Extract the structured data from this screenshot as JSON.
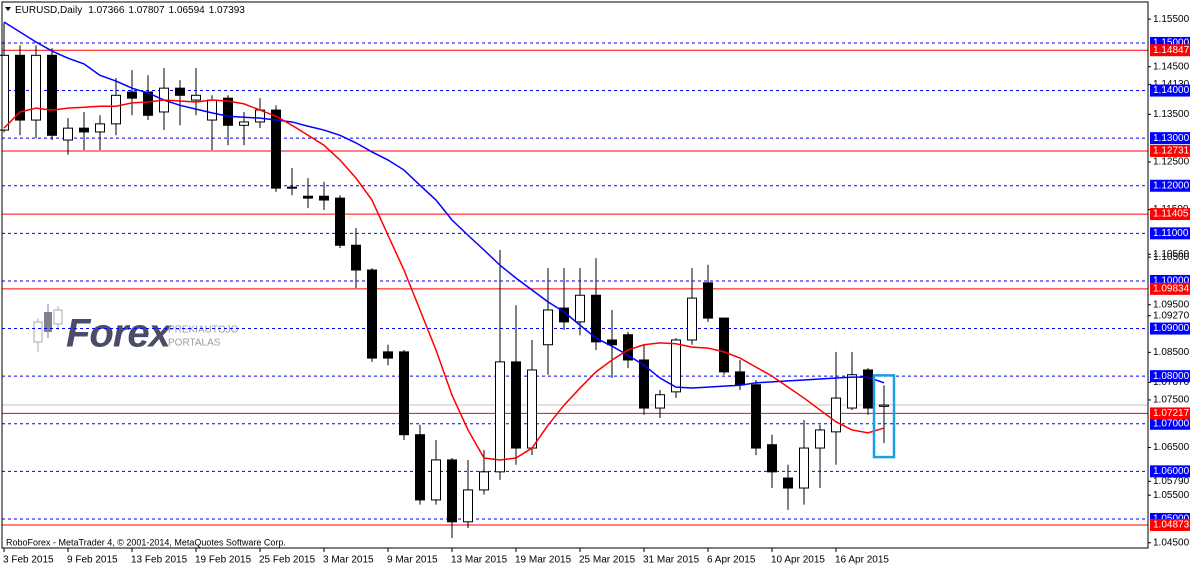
{
  "chart_data": {
    "type": "candlestick",
    "symbol": "EURUSD,Daily",
    "footer": "RoboForex - MetaTrader 4, © 2001-2014, MetaQuotes Software Corp.",
    "watermark": {
      "brand": "Forex",
      "line1": "PREKIAUTOJO",
      "line2": "PORTALAS"
    },
    "categories": [
      "3 Feb 2015",
      null,
      null,
      null,
      "9 Feb 2015",
      null,
      null,
      null,
      "13 Feb 2015",
      null,
      null,
      null,
      "19 Feb 2015",
      null,
      null,
      null,
      "25 Feb 2015",
      null,
      null,
      null,
      "3 Mar 2015",
      null,
      null,
      null,
      "9 Mar 2015",
      null,
      null,
      null,
      "13 Mar 2015",
      null,
      null,
      null,
      "19 Mar 2015",
      null,
      null,
      null,
      "25 Mar 2015",
      null,
      null,
      null,
      "31 Mar 2015",
      null,
      null,
      null,
      "6 Apr 2015",
      null,
      null,
      null,
      "10 Apr 2015",
      null,
      null,
      null,
      "16 Apr 2015",
      null,
      null,
      null
    ],
    "open": [
      1.1317,
      1.1474,
      1.1338,
      1.1474,
      1.1296,
      1.1321,
      1.1313,
      1.133,
      1.1397,
      1.1397,
      1.1355,
      1.1405,
      1.138,
      1.1338,
      1.1384,
      1.1327,
      1.1334,
      1.1359,
      1.1195,
      1.1178,
      1.1178,
      1.1174,
      1.1075,
      1.1023,
      1.0851,
      1.0851,
      1.0677,
      1.054,
      1.0624,
      1.0494,
      1.0561,
      1.0599,
      1.083,
      1.0649,
      1.0866,
      1.0943,
      1.0914,
      1.097,
      1.0876,
      1.0887,
      1.0834,
      1.0733,
      1.0767,
      1.0876,
      1.0996,
      1.0922,
      1.0809,
      1.0782,
      1.0656,
      1.0586,
      1.0565,
      1.0649,
      1.0683,
      1.0733,
      1.0813,
      1.07366
    ],
    "high": [
      1.1543,
      1.1495,
      1.1495,
      1.1489,
      1.1342,
      1.1355,
      1.1348,
      1.1426,
      1.1443,
      1.1432,
      1.1447,
      1.1422,
      1.1447,
      1.139,
      1.139,
      1.1355,
      1.1384,
      1.1369,
      1.1237,
      1.1216,
      1.1208,
      1.118,
      1.1111,
      1.1027,
      1.0866,
      1.0855,
      1.0698,
      1.0666,
      1.0628,
      1.0624,
      1.0645,
      1.1065,
      1.0949,
      1.0876,
      1.1027,
      1.1027,
      1.1027,
      1.1048,
      1.0939,
      1.0893,
      1.0866,
      1.0771,
      1.088,
      1.1027,
      1.1034,
      1.0922,
      1.0834,
      1.0792,
      1.0677,
      1.0614,
      1.0708,
      1.0698,
      1.0851,
      1.0851,
      1.0817,
      1.07807
    ],
    "low": [
      1.1312,
      1.1306,
      1.13,
      1.1296,
      1.1265,
      1.1275,
      1.1275,
      1.1306,
      1.1348,
      1.1338,
      1.1317,
      1.1327,
      1.1348,
      1.1275,
      1.1285,
      1.1285,
      1.1321,
      1.1187,
      1.118,
      1.1153,
      1.1149,
      1.1069,
      1.0985,
      1.083,
      1.0823,
      1.0666,
      1.053,
      1.053,
      1.046,
      1.0481,
      1.0551,
      1.0582,
      1.0614,
      1.0634,
      1.0803,
      1.0897,
      1.0886,
      1.0855,
      1.0796,
      1.0817,
      1.0719,
      1.0712,
      1.0754,
      1.0866,
      1.0914,
      1.0803,
      1.0771,
      1.0634,
      1.0565,
      1.0519,
      1.053,
      1.0565,
      1.0614,
      1.0729,
      1.0719,
      1.06594
    ],
    "close": [
      1.1474,
      1.1338,
      1.1474,
      1.1306,
      1.1321,
      1.1313,
      1.133,
      1.139,
      1.1384,
      1.1348,
      1.1405,
      1.139,
      1.139,
      1.138,
      1.1327,
      1.1334,
      1.1359,
      1.1195,
      1.1197,
      1.1174,
      1.117,
      1.1075,
      1.1023,
      1.0838,
      1.0838,
      1.0677,
      1.054,
      1.0624,
      1.0494,
      1.0561,
      1.0599,
      1.083,
      1.0649,
      1.0813,
      1.0939,
      1.0914,
      1.097,
      1.0872,
      1.0866,
      1.0834,
      1.0733,
      1.0761,
      1.0876,
      1.0964,
      1.0922,
      1.0809,
      1.0782,
      1.0649,
      1.0599,
      1.0565,
      1.0649,
      1.0687,
      1.0754,
      1.0803,
      1.0733,
      1.07393
    ],
    "lines": [
      {
        "color": "#0000ff",
        "values": [
          1.1544,
          1.1523,
          1.1502,
          1.1483,
          1.1468,
          1.1456,
          1.1432,
          1.142,
          1.1405,
          1.1395,
          1.138,
          1.1369,
          1.1361,
          1.1353,
          1.1346,
          1.1344,
          1.1342,
          1.1338,
          1.1334,
          1.1325,
          1.1317,
          1.1306,
          1.129,
          1.1271,
          1.1254,
          1.1233,
          1.1201,
          1.117,
          1.1128,
          1.1096,
          1.1065,
          1.1033,
          1.1006,
          1.0981,
          1.0956,
          1.0935,
          1.0907,
          1.088,
          1.0863,
          1.0844,
          1.0823,
          1.0796,
          1.0777,
          1.0775,
          1.0777,
          1.0779,
          1.0781,
          1.0786,
          1.0788,
          1.079,
          1.0792,
          1.0794,
          1.0796,
          1.0798,
          1.0798,
          1.0786
        ]
      },
      {
        "color": "#ff0000",
        "values": [
          1.1321,
          1.1355,
          1.1363,
          1.1359,
          1.1363,
          1.1365,
          1.1367,
          1.1367,
          1.1374,
          1.1376,
          1.138,
          1.1378,
          1.1376,
          1.138,
          1.1378,
          1.1372,
          1.1359,
          1.1346,
          1.1327,
          1.1306,
          1.1285,
          1.1254,
          1.1216,
          1.117,
          1.1096,
          1.1023,
          1.0939,
          1.0855,
          1.076,
          1.0687,
          1.0628,
          1.0624,
          1.0628,
          1.0649,
          1.0697,
          1.0739,
          1.0775,
          1.0809,
          1.0834,
          1.0855,
          1.0866,
          1.087,
          1.0868,
          1.0861,
          1.0859,
          1.0851,
          1.0838,
          1.0819,
          1.08,
          1.0777,
          1.0754,
          1.0729,
          1.0704,
          1.0687,
          1.0681,
          1.0691
        ]
      }
    ],
    "ylim": [
      1.0439,
      1.1586
    ],
    "yticks": [
      {
        "value": 1.155,
        "label": "1.15500"
      },
      {
        "value": 1.145,
        "label": "1.14500"
      },
      {
        "value": 1.1413,
        "label": "1.14130"
      },
      {
        "value": 1.135,
        "label": "1.13500"
      },
      {
        "value": 1.125,
        "label": "1.12500"
      },
      {
        "value": 1.115,
        "label": "1.11500"
      },
      {
        "value": 1.1056,
        "label": "1.10560"
      },
      {
        "value": 1.105,
        "label": "1.10500"
      },
      {
        "value": 1.095,
        "label": "1.09500"
      },
      {
        "value": 1.0927,
        "label": "1.09270"
      },
      {
        "value": 1.085,
        "label": "1.08500"
      },
      {
        "value": 1.0787,
        "label": "1.07870"
      },
      {
        "value": 1.075,
        "label": "1.07500"
      },
      {
        "value": 1.065,
        "label": "1.06500"
      },
      {
        "value": 1.0579,
        "label": "1.05790"
      },
      {
        "value": 1.055,
        "label": "1.05500"
      },
      {
        "value": 1.045,
        "label": "1.04500"
      }
    ],
    "levels": [
      {
        "value": 1.15,
        "label": "1.15000",
        "color": "#0000ff",
        "style": "dashed"
      },
      {
        "value": 1.14,
        "label": "1.14000",
        "color": "#0000ff",
        "style": "dashed"
      },
      {
        "value": 1.13,
        "label": "1.13000",
        "color": "#0000ff",
        "style": "dashed"
      },
      {
        "value": 1.12,
        "label": "1.12000",
        "color": "#0000ff",
        "style": "dashed"
      },
      {
        "value": 1.11,
        "label": "1.11000",
        "color": "#0000ff",
        "style": "dashed"
      },
      {
        "value": 1.1,
        "label": "1.10000",
        "color": "#0000ff",
        "style": "dashed"
      },
      {
        "value": 1.09,
        "label": "1.09000",
        "color": "#0000ff",
        "style": "dashed"
      },
      {
        "value": 1.08,
        "label": "1.08000",
        "color": "#0000ff",
        "style": "dashed"
      },
      {
        "value": 1.07,
        "label": "1.07000",
        "color": "#0000ff",
        "style": "dashed"
      },
      {
        "value": 1.06,
        "label": "1.06000",
        "color": "#0000ff",
        "style": "dashed"
      },
      {
        "value": 1.05,
        "label": "1.05000",
        "color": "#0000ff",
        "style": "dashed"
      },
      {
        "value": 1.14847,
        "label": "1.14847",
        "color": "#ff0000",
        "style": "solid"
      },
      {
        "value": 1.12731,
        "label": "1.12731",
        "color": "#ff0000",
        "style": "solid"
      },
      {
        "value": 1.11405,
        "label": "1.11405",
        "color": "#ff0000",
        "style": "solid"
      },
      {
        "value": 1.09834,
        "label": "1.09834",
        "color": "#ff0000",
        "style": "solid"
      },
      {
        "value": 1.07217,
        "label": "1.07217",
        "color": "#ff0000",
        "style": "solid"
      },
      {
        "value": 1.04873,
        "label": "1.04873",
        "color": "#ff0000",
        "style": "solid"
      }
    ]
  }
}
